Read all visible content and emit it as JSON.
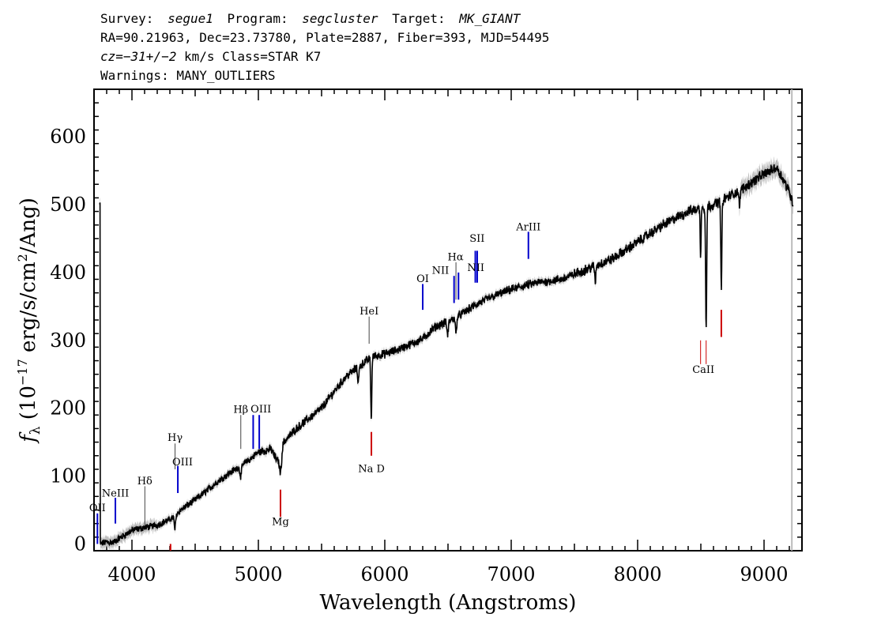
{
  "header": {
    "survey_key": "Survey:",
    "survey": "segue1",
    "program_key": "Program:",
    "program": "segcluster",
    "target_key": "Target:",
    "target": "MK_GIANT",
    "line2": "RA=90.21963, Dec=23.73780, Plate=2887, Fiber=393, MJD=54495",
    "cz_label": "cz",
    "cz_value": "=−31+/−2",
    "cz_rest": " km/s Class=STAR K7",
    "warnings": "Warnings: MANY_OUTLIERS"
  },
  "colors": {
    "emission": "#0000cc",
    "absorption": "#cc0000",
    "spectrum": "#000000",
    "error_band": "#bdbdbd"
  },
  "chart_data": {
    "type": "line",
    "title": "",
    "xlabel": "Wavelength (Angstroms)",
    "ylabel_parts": {
      "f": "f",
      "sub": "λ",
      "main": " (10",
      "exp1": "−17",
      "mid": " erg/s/cm",
      "exp2": "2",
      "end": "/Ang)"
    },
    "xlim": [
      3700,
      9300
    ],
    "ylim": [
      -10,
      670
    ],
    "xticks": [
      4000,
      5000,
      6000,
      7000,
      8000,
      9000
    ],
    "yticks": [
      0,
      100,
      200,
      300,
      400,
      500,
      600
    ],
    "xtick_labels": [
      "4000",
      "5000",
      "6000",
      "7000",
      "8000",
      "9000"
    ],
    "ytick_labels": [
      "0",
      "100",
      "200",
      "300",
      "400",
      "500",
      "600"
    ],
    "grid": false,
    "spectrum_knots": [
      [
        3750,
        0
      ],
      [
        3800,
        3
      ],
      [
        3850,
        2
      ],
      [
        3900,
        8
      ],
      [
        3950,
        14
      ],
      [
        4000,
        20
      ],
      [
        4100,
        24
      ],
      [
        4200,
        28
      ],
      [
        4300,
        36
      ],
      [
        4400,
        52
      ],
      [
        4500,
        65
      ],
      [
        4600,
        80
      ],
      [
        4700,
        95
      ],
      [
        4800,
        108
      ],
      [
        4900,
        120
      ],
      [
        5000,
        135
      ],
      [
        5100,
        140
      ],
      [
        5150,
        122
      ],
      [
        5200,
        150
      ],
      [
        5300,
        170
      ],
      [
        5400,
        185
      ],
      [
        5500,
        200
      ],
      [
        5600,
        225
      ],
      [
        5700,
        248
      ],
      [
        5800,
        262
      ],
      [
        5900,
        276
      ],
      [
        6000,
        280
      ],
      [
        6100,
        286
      ],
      [
        6200,
        294
      ],
      [
        6300,
        302
      ],
      [
        6400,
        320
      ],
      [
        6500,
        328
      ],
      [
        6600,
        338
      ],
      [
        6700,
        350
      ],
      [
        6800,
        360
      ],
      [
        6900,
        368
      ],
      [
        7000,
        375
      ],
      [
        7200,
        385
      ],
      [
        7400,
        390
      ],
      [
        7600,
        405
      ],
      [
        7800,
        420
      ],
      [
        8000,
        445
      ],
      [
        8200,
        470
      ],
      [
        8400,
        490
      ],
      [
        8600,
        500
      ],
      [
        8800,
        520
      ],
      [
        9000,
        545
      ],
      [
        9100,
        555
      ],
      [
        9200,
        520
      ],
      [
        9230,
        500
      ]
    ],
    "absorption_features": [
      {
        "w": 4340,
        "d": 20,
        "s": 8
      },
      {
        "w": 4860,
        "d": 15,
        "s": 10
      },
      {
        "w": 5175,
        "d": 30,
        "s": 12
      },
      {
        "w": 5893,
        "d": 90,
        "s": 6
      },
      {
        "w": 5790,
        "d": 20,
        "s": 8
      },
      {
        "w": 6497,
        "d": 20,
        "s": 8
      },
      {
        "w": 6563,
        "d": 25,
        "s": 7
      },
      {
        "w": 7665,
        "d": 25,
        "s": 6
      },
      {
        "w": 8498,
        "d": 70,
        "s": 5
      },
      {
        "w": 8542,
        "d": 180,
        "s": 6
      },
      {
        "w": 8662,
        "d": 130,
        "s": 6
      },
      {
        "w": 8806,
        "d": 30,
        "s": 5
      }
    ],
    "emission_lines": [
      {
        "label": "OII",
        "x": 3727,
        "ybot": 0,
        "ytop": 45,
        "label_y": 48
      },
      {
        "label": "NeIII",
        "x": 3869,
        "ybot": 30,
        "ytop": 68,
        "label_y": 70
      },
      {
        "label": "Hδ",
        "x": 4102,
        "ybot": 28,
        "ytop": 85,
        "label_y": 88
      },
      {
        "label": "Hγ",
        "x": 4341,
        "ybot": 110,
        "ytop": 148,
        "label_y": 152
      },
      {
        "label": "OIII",
        "x": 4363,
        "ybot": 75,
        "ytop": 115,
        "label_y": 116
      },
      {
        "label": "Hβ",
        "x": 4861,
        "ybot": 140,
        "ytop": 190,
        "label_y": 193
      },
      {
        "label": "OIII",
        "x": 4959,
        "ybot": 140,
        "ytop": 190,
        "label_y": 193
      },
      {
        "label": "OIII_2",
        "x": 5007,
        "ybot": 140,
        "ytop": 190,
        "label_y": 193
      },
      {
        "label": "HeI",
        "x": 5876,
        "ybot": 295,
        "ytop": 335,
        "label_y": 338
      },
      {
        "label": "OI",
        "x": 6300,
        "ybot": 345,
        "ytop": 383,
        "label_y": 386
      },
      {
        "label": "NII",
        "x": 6548,
        "ybot": 355,
        "ytop": 395,
        "label_y": 398
      },
      {
        "label": "Hα",
        "x": 6563,
        "ybot": 360,
        "ytop": 415,
        "label_y": 418
      },
      {
        "label": "NII_2",
        "x": 6583,
        "ybot": 360,
        "ytop": 400,
        "label_y": 402
      },
      {
        "label": "SII",
        "x": 6716,
        "ybot": 385,
        "ytop": 432,
        "label_y": 435
      },
      {
        "label": "SII_2",
        "x": 6731,
        "ybot": 385,
        "ytop": 432,
        "label_y": 435
      },
      {
        "label": "ArIII",
        "x": 7136,
        "ybot": 420,
        "ytop": 460,
        "label_y": 462
      }
    ],
    "emission_labels": [
      {
        "text": "OII",
        "x": 3727,
        "y": 48
      },
      {
        "text": "NeIII",
        "x": 3869,
        "y": 70
      },
      {
        "text": "Hδ",
        "x": 4102,
        "y": 88
      },
      {
        "text": "Hγ",
        "x": 4341,
        "y": 152
      },
      {
        "text": "OIII",
        "x": 4400,
        "y": 116
      },
      {
        "text": "Hβ",
        "x": 4861,
        "y": 193
      },
      {
        "text": "OIII",
        "x": 5020,
        "y": 194
      },
      {
        "text": "HeI",
        "x": 5876,
        "y": 338
      },
      {
        "text": "OI",
        "x": 6300,
        "y": 386
      },
      {
        "text": "NII",
        "x": 6440,
        "y": 398
      },
      {
        "text": "Hα",
        "x": 6560,
        "y": 418
      },
      {
        "text": "NII",
        "x": 6720,
        "y": 402
      },
      {
        "text": "SII",
        "x": 6730,
        "y": 445
      },
      {
        "text": "ArIII",
        "x": 7136,
        "y": 462
      }
    ],
    "absorption_lines": [
      {
        "label": "",
        "x": 4305,
        "ybot": -10,
        "ytop": 0
      },
      {
        "label": "Mg",
        "x": 5175,
        "ybot": 40,
        "ytop": 80,
        "label_y": 28
      },
      {
        "label": "Na D",
        "x": 5894,
        "ybot": 130,
        "ytop": 165,
        "label_y": 106
      },
      {
        "label": "CaII",
        "x": 8498,
        "ybot": 265,
        "ytop": 300,
        "label_y": 252
      },
      {
        "label": "CaII_2",
        "x": 8542,
        "ybot": 265,
        "ytop": 300
      },
      {
        "label": "CaII_3",
        "x": 8662,
        "ybot": 305,
        "ytop": 345
      }
    ],
    "absorption_labels": [
      {
        "text": "Mg",
        "x": 5175,
        "y": 28
      },
      {
        "text": "Na D",
        "x": 5894,
        "y": 106
      },
      {
        "text": "CaII",
        "x": 8520,
        "y": 252
      }
    ]
  }
}
